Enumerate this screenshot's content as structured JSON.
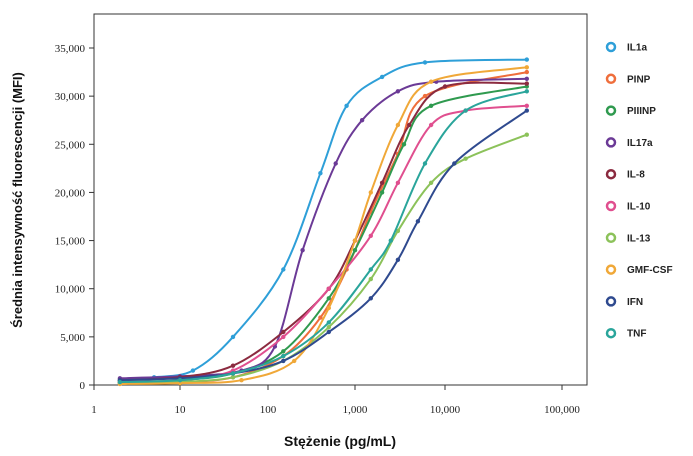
{
  "chart_data": {
    "type": "line",
    "xlabel": "Stężenie (pg/mL)",
    "ylabel": "Średnia intensywność fluorescencji (MFI)",
    "x_scale": "log",
    "xlim": [
      1,
      100000
    ],
    "ylim": [
      0,
      37500
    ],
    "x_ticks": [
      1,
      10,
      100,
      1000,
      10000,
      100000
    ],
    "x_tick_labels": [
      "1",
      "10",
      "100",
      "1,000",
      "10,000",
      "100,000"
    ],
    "y_ticks": [
      0,
      5000,
      10000,
      15000,
      20000,
      25000,
      30000,
      35000
    ],
    "y_tick_labels": [
      "0",
      "5,000",
      "10,000",
      "15,000",
      "20,000",
      "25,000",
      "30,000",
      "35,000"
    ],
    "grid": false,
    "legend_position": "right",
    "series": [
      {
        "name": "IL1a",
        "color": "#2e9fd8",
        "x": [
          2,
          5,
          14,
          40,
          150,
          400,
          800,
          2000,
          6000,
          50000
        ],
        "y": [
          500,
          800,
          1500,
          5000,
          12000,
          22000,
          29000,
          32000,
          33500,
          33800
        ]
      },
      {
        "name": "PINP",
        "color": "#ef6e3c",
        "x": [
          2,
          10,
          40,
          150,
          400,
          800,
          1500,
          3000,
          6000,
          50000
        ],
        "y": [
          200,
          300,
          800,
          3000,
          7000,
          12000,
          18000,
          24000,
          30000,
          32500
        ]
      },
      {
        "name": "PIIINP",
        "color": "#2f9a4f",
        "x": [
          2,
          10,
          40,
          150,
          500,
          1000,
          2000,
          3500,
          7000,
          50000
        ],
        "y": [
          300,
          500,
          1200,
          3500,
          9000,
          14000,
          20000,
          25000,
          29000,
          31000
        ]
      },
      {
        "name": "IL17a",
        "color": "#6b3a96",
        "x": [
          2,
          10,
          50,
          120,
          250,
          600,
          1200,
          3000,
          8000,
          50000
        ],
        "y": [
          700,
          900,
          1500,
          4000,
          14000,
          23000,
          27500,
          30500,
          31500,
          31800
        ]
      },
      {
        "name": "IL-8",
        "color": "#8b2a3f",
        "x": [
          2,
          10,
          40,
          150,
          500,
          1000,
          2000,
          4000,
          10000,
          50000
        ],
        "y": [
          500,
          800,
          2000,
          5500,
          10000,
          15000,
          21000,
          27000,
          31000,
          31300
        ]
      },
      {
        "name": "IL-10",
        "color": "#e04f8f",
        "x": [
          2,
          10,
          40,
          150,
          500,
          1500,
          3000,
          7000,
          15000,
          50000
        ],
        "y": [
          300,
          500,
          1500,
          5000,
          10000,
          15500,
          21000,
          27000,
          28500,
          29000
        ]
      },
      {
        "name": "IL-13",
        "color": "#8cc25a",
        "x": [
          2,
          10,
          40,
          150,
          500,
          1500,
          3000,
          7000,
          15000,
          50000
        ],
        "y": [
          200,
          300,
          800,
          2500,
          6000,
          11000,
          16000,
          21000,
          23500,
          26000
        ]
      },
      {
        "name": "GMF-CSF",
        "color": "#f0a838",
        "x": [
          2,
          10,
          50,
          200,
          500,
          1000,
          1500,
          3000,
          7000,
          50000
        ],
        "y": [
          100,
          200,
          500,
          2500,
          8000,
          15000,
          20000,
          27000,
          31500,
          33000
        ]
      },
      {
        "name": "IFN",
        "color": "#2f4a8f",
        "x": [
          2,
          10,
          40,
          150,
          500,
          1500,
          3000,
          5000,
          12000,
          50000
        ],
        "y": [
          500,
          700,
          1200,
          2500,
          5500,
          9000,
          13000,
          17000,
          23000,
          28500
        ]
      },
      {
        "name": "TNF",
        "color": "#2aa59b",
        "x": [
          2,
          10,
          40,
          150,
          500,
          1500,
          2500,
          6000,
          15000,
          50000
        ],
        "y": [
          300,
          500,
          1200,
          3000,
          6500,
          12000,
          15000,
          23000,
          28500,
          30500
        ]
      }
    ]
  }
}
